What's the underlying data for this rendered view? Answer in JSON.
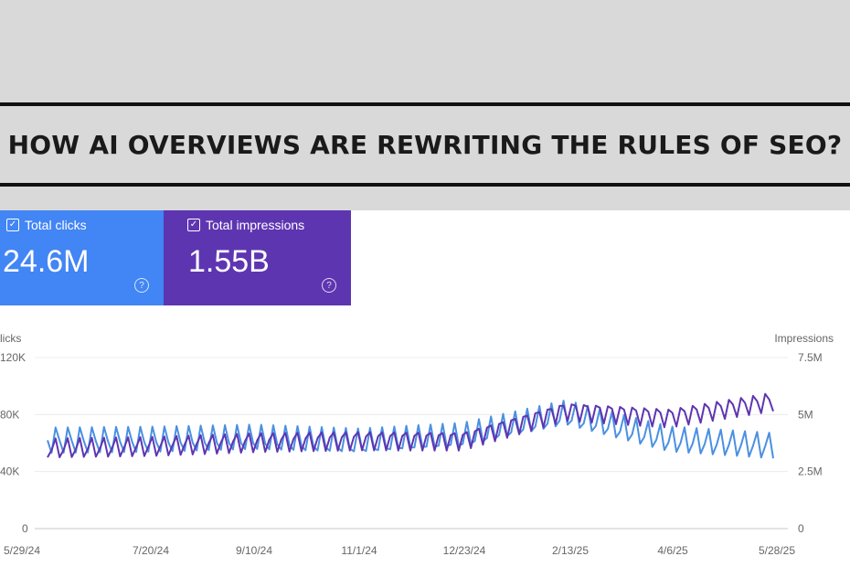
{
  "headline": "HOW AI OVERVIEWS ARE REWRITING THE RULES OF SEO?",
  "cards": [
    {
      "label": "Total clicks",
      "value": "24.6M",
      "color": "#4285f4"
    },
    {
      "label": "Total impressions",
      "value": "1.55B",
      "color": "#5e35b1"
    }
  ],
  "chart_data": {
    "type": "line",
    "left_axis_label": "licks",
    "right_axis_label": "Impressions",
    "left_ticks": [
      "120K",
      "80K",
      "40K",
      "0"
    ],
    "right_ticks": [
      "7.5M",
      "5M",
      "2.5M",
      "0"
    ],
    "ylim_left": [
      0,
      120000
    ],
    "ylim_right": [
      0,
      7500000
    ],
    "x_ticks": [
      "5/29/24",
      "7/20/24",
      "9/10/24",
      "11/1/24",
      "12/23/24",
      "2/13/25",
      "4/6/25",
      "5/28/25"
    ],
    "series": [
      {
        "name": "Total clicks",
        "color": "#4a90e2",
        "x": [
          "5/29/24",
          "7/20/24",
          "9/10/24",
          "11/1/24",
          "12/23/24",
          "2/13/25",
          "4/6/25",
          "5/28/25"
        ],
        "values": [
          62000,
          62000,
          63000,
          60000,
          64000,
          80000,
          62000,
          58000
        ]
      },
      {
        "name": "Total impressions",
        "color": "#5e35b1",
        "x": [
          "5/29/24",
          "7/20/24",
          "9/10/24",
          "11/1/24",
          "12/23/24",
          "2/13/25",
          "4/6/25",
          "5/28/25"
        ],
        "values": [
          3500000,
          3600000,
          3800000,
          3900000,
          3900000,
          5200000,
          4900000,
          5600000
        ]
      }
    ]
  }
}
